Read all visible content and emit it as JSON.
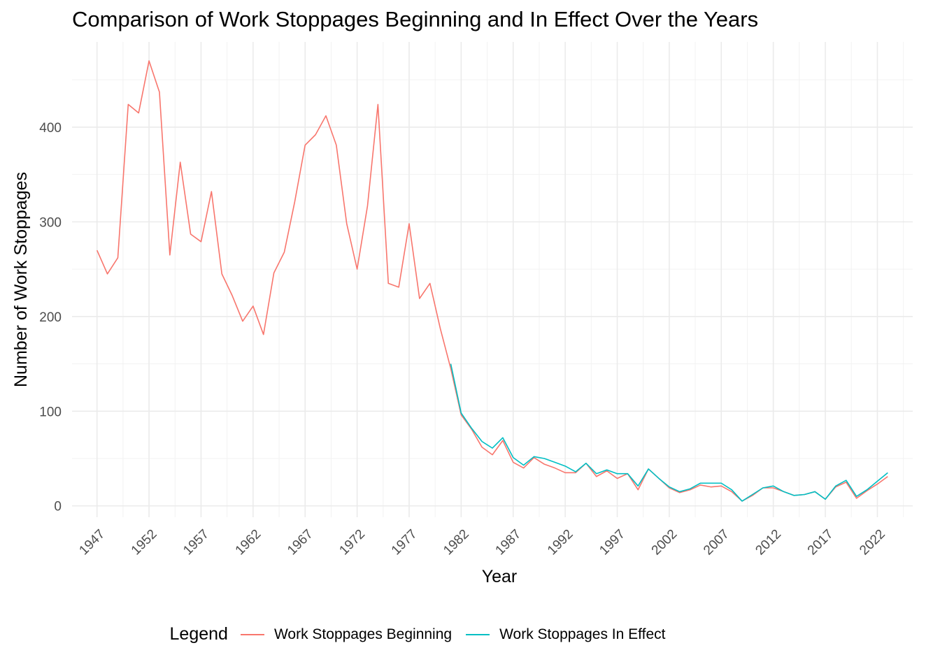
{
  "chart_data": {
    "type": "line",
    "title": "Comparison of Work Stoppages Beginning and In Effect Over the Years",
    "xlabel": "Year",
    "ylabel": "Number of Work Stoppages",
    "xlim": [
      1944.6,
      2025.4
    ],
    "ylim": [
      -12,
      490
    ],
    "x_ticks": [
      "1947",
      "1952",
      "1957",
      "1962",
      "1967",
      "1972",
      "1977",
      "1982",
      "1987",
      "1992",
      "1997",
      "2002",
      "2007",
      "2012",
      "2017",
      "2022"
    ],
    "y_ticks": [
      "0",
      "100",
      "200",
      "300",
      "400"
    ],
    "grid": true,
    "legend_title": "Legend",
    "legend_position": "bottom",
    "series": [
      {
        "name": "Work Stoppages Beginning",
        "color": "#F8766D",
        "x": [
          1947,
          1948,
          1949,
          1950,
          1951,
          1952,
          1953,
          1954,
          1955,
          1956,
          1957,
          1958,
          1959,
          1960,
          1961,
          1962,
          1963,
          1964,
          1965,
          1966,
          1967,
          1968,
          1969,
          1970,
          1971,
          1972,
          1973,
          1974,
          1975,
          1976,
          1977,
          1978,
          1979,
          1980,
          1981,
          1982,
          1983,
          1984,
          1985,
          1986,
          1987,
          1988,
          1989,
          1990,
          1991,
          1992,
          1993,
          1994,
          1995,
          1996,
          1997,
          1998,
          1999,
          2000,
          2001,
          2002,
          2003,
          2004,
          2005,
          2006,
          2007,
          2008,
          2009,
          2010,
          2011,
          2012,
          2013,
          2014,
          2015,
          2016,
          2017,
          2018,
          2019,
          2020,
          2021,
          2022,
          2023
        ],
        "values": [
          270,
          245,
          262,
          424,
          415,
          470,
          437,
          265,
          363,
          287,
          279,
          332,
          245,
          222,
          195,
          211,
          181,
          246,
          268,
          321,
          381,
          392,
          412,
          381,
          298,
          250,
          317,
          424,
          235,
          231,
          298,
          219,
          235,
          187,
          145,
          96,
          81,
          62,
          54,
          69,
          46,
          40,
          51,
          44,
          40,
          35,
          35,
          45,
          31,
          37,
          29,
          34,
          17,
          39,
          29,
          19,
          14,
          17,
          22,
          20,
          21,
          15,
          5,
          11,
          19,
          19,
          15,
          11,
          12,
          15,
          7,
          20,
          25,
          8,
          16,
          23,
          31
        ]
      },
      {
        "name": "Work Stoppages In Effect",
        "color": "#00BFC4",
        "x": [
          1981,
          1982,
          1983,
          1984,
          1985,
          1986,
          1987,
          1988,
          1989,
          1990,
          1991,
          1992,
          1993,
          1994,
          1995,
          1996,
          1997,
          1998,
          1999,
          2000,
          2001,
          2002,
          2003,
          2004,
          2005,
          2006,
          2007,
          2008,
          2009,
          2010,
          2011,
          2012,
          2013,
          2014,
          2015,
          2016,
          2017,
          2018,
          2019,
          2020,
          2021,
          2022,
          2023
        ],
        "values": [
          150,
          98,
          82,
          68,
          61,
          72,
          51,
          43,
          52,
          50,
          46,
          42,
          36,
          45,
          34,
          38,
          34,
          34,
          21,
          39,
          29,
          20,
          15,
          18,
          24,
          24,
          24,
          17,
          5,
          12,
          19,
          21,
          15,
          11,
          12,
          15,
          7,
          21,
          27,
          10,
          17,
          26,
          35
        ]
      }
    ]
  }
}
